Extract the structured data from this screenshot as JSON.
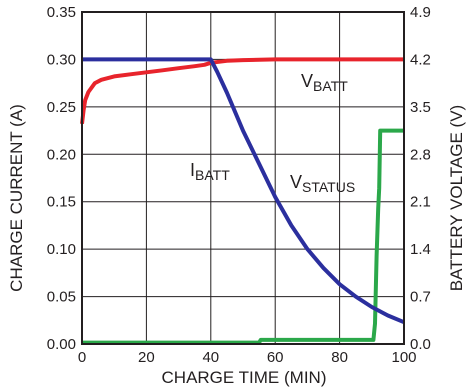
{
  "chart_data": {
    "type": "line",
    "xlabel": "CHARGE TIME (MIN)",
    "ylabel_left": "CHARGE CURRENT (A)",
    "ylabel_right": "BATTERY VOLTAGE (V)",
    "xlim": [
      0,
      100
    ],
    "ylim_left": [
      0,
      0.35
    ],
    "ylim_right": [
      0,
      4.9
    ],
    "grid": true,
    "x_ticks": [
      "0",
      "20",
      "40",
      "60",
      "80",
      "100"
    ],
    "y_ticks_left": [
      "0.00",
      "0.05",
      "0.10",
      "0.15",
      "0.20",
      "0.25",
      "0.30",
      "0.35"
    ],
    "y_ticks_right": [
      "0.0",
      "0.7",
      "1.4",
      "2.1",
      "2.8",
      "3.5",
      "4.2",
      "4.9"
    ],
    "series": [
      {
        "name": "IBATT",
        "label_main": "I",
        "label_sub": "BATT",
        "axis": "left",
        "color": "#2b2f9e",
        "x": [
          0,
          10,
          20,
          30,
          38,
          40,
          42,
          45,
          50,
          55,
          60,
          65,
          70,
          75,
          80,
          85,
          90,
          95,
          100
        ],
        "y": [
          0.3,
          0.3,
          0.3,
          0.3,
          0.3,
          0.3,
          0.287,
          0.265,
          0.225,
          0.19,
          0.155,
          0.125,
          0.1,
          0.08,
          0.063,
          0.05,
          0.039,
          0.03,
          0.023
        ]
      },
      {
        "name": "VBATT",
        "label_main": "V",
        "label_sub": "BATT",
        "axis": "right",
        "color": "#e8242c",
        "x": [
          0,
          0.5,
          1,
          2,
          4,
          6,
          10,
          15,
          20,
          25,
          30,
          35,
          38,
          40,
          45,
          50,
          60,
          70,
          80,
          90,
          100
        ],
        "y": [
          3.25,
          3.45,
          3.6,
          3.72,
          3.85,
          3.9,
          3.95,
          3.98,
          4.01,
          4.04,
          4.07,
          4.1,
          4.12,
          4.15,
          4.18,
          4.19,
          4.2,
          4.2,
          4.2,
          4.2,
          4.2
        ]
      },
      {
        "name": "VSTATUS",
        "label_main": "V",
        "label_sub": "STATUS",
        "axis": "right",
        "color": "#2ba84a",
        "x": [
          0,
          55,
          55.5,
          90.5,
          91,
          91.5,
          92,
          92.3,
          92.6,
          100
        ],
        "y": [
          0.02,
          0.02,
          0.06,
          0.06,
          0.3,
          1.3,
          2.0,
          2.3,
          3.15,
          3.15
        ]
      }
    ]
  }
}
